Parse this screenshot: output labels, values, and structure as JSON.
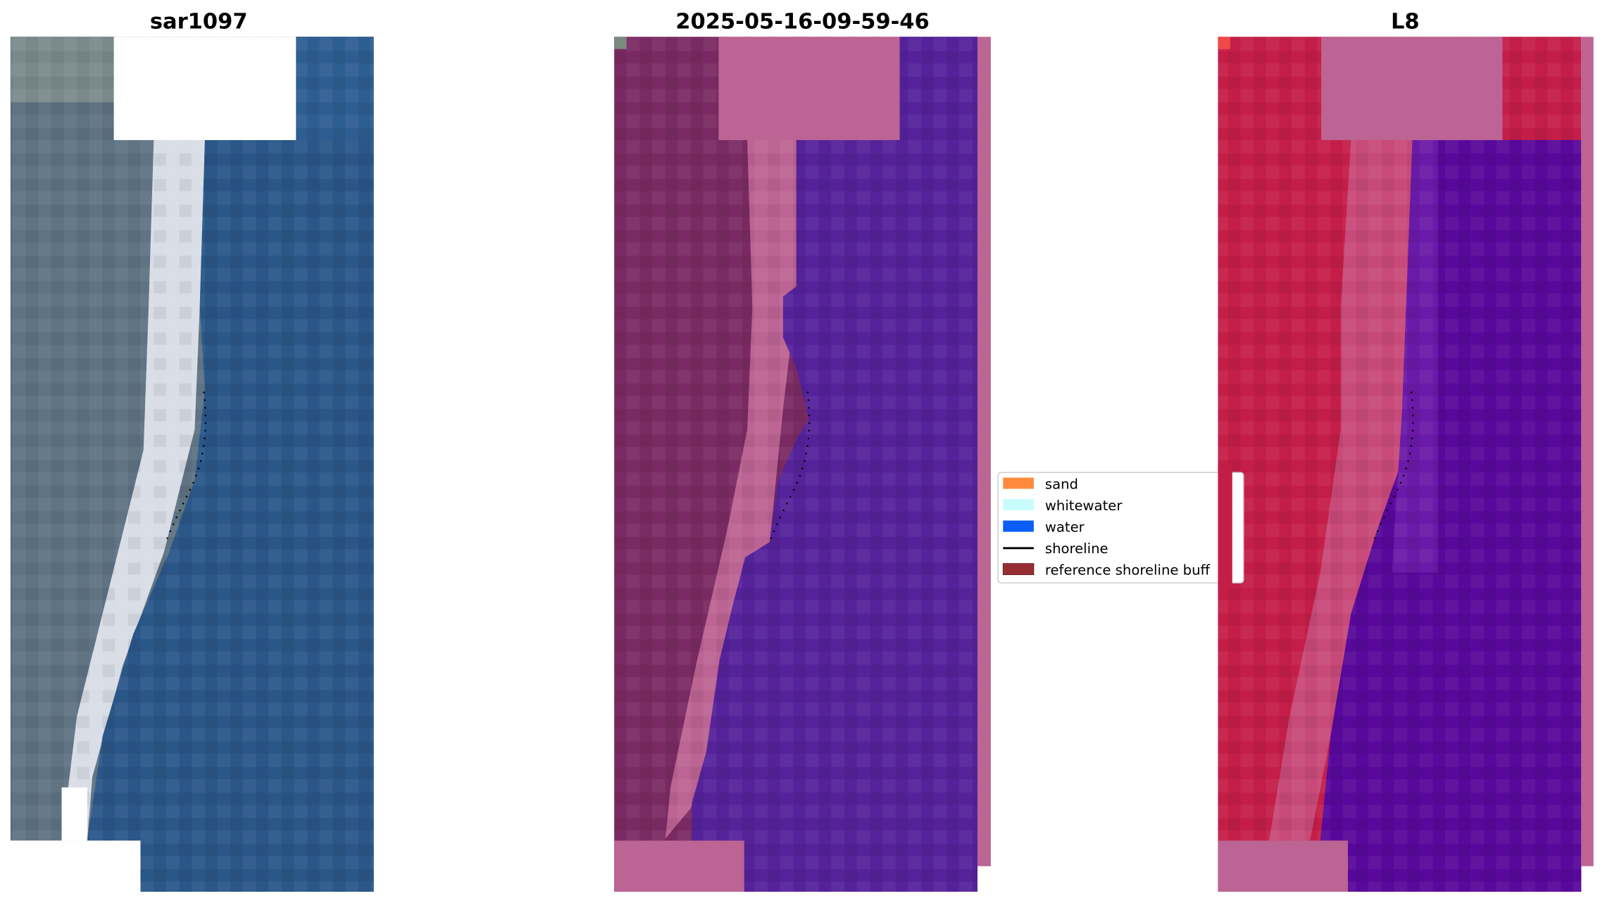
{
  "panels": [
    {
      "title": "sar1097",
      "kind": "rgb-image"
    },
    {
      "title": "2025-05-16-09-59-46",
      "kind": "classification-overlay"
    },
    {
      "title": "L8",
      "kind": "classification-overlay"
    }
  ],
  "legend": {
    "items": [
      {
        "label": "sand",
        "color": "#ff8c3c",
        "shape": "patch"
      },
      {
        "label": "whitewater",
        "color": "#c8fcfc",
        "shape": "patch"
      },
      {
        "label": "water",
        "color": "#0a5cf5",
        "shape": "patch"
      },
      {
        "label": "shoreline",
        "color": "#000000",
        "shape": "line"
      },
      {
        "label": "reference shoreline buff",
        "color": "#962d32",
        "shape": "patch"
      }
    ]
  },
  "colors": {
    "rgb_land": "#5f7383",
    "rgb_beach": "#d8dde6",
    "rgb_water": "#2a5688",
    "overlay_land": "#7a2a62",
    "overlay_beach": "#bc6494",
    "overlay_water": "#55229a",
    "l8_land": "#c41e48",
    "l8_water": "#58089a"
  }
}
